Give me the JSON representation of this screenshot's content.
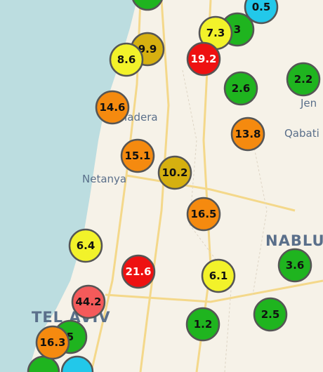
{
  "markers": [
    {
      "label": "0.5",
      "color": "#22c8ea"
    },
    {
      "label": "3",
      "color": "#1fb41f"
    },
    {
      "label": "7.3",
      "color": "#f2f22a"
    },
    {
      "label": "9.9",
      "color": "#d6b010"
    },
    {
      "label": "8.6",
      "color": "#f2f22a"
    },
    {
      "label": "19.2",
      "color": "#ee1111"
    },
    {
      "label": "2.6",
      "color": "#1fb41f"
    },
    {
      "label": "2.2",
      "color": "#1fb41f"
    },
    {
      "label": "14.6",
      "color": "#f58a0f"
    },
    {
      "label": "13.8",
      "color": "#f58a0f"
    },
    {
      "label": "15.1",
      "color": "#f58a0f"
    },
    {
      "label": "10.2",
      "color": "#d6b010"
    },
    {
      "label": "16.5",
      "color": "#f58a0f"
    },
    {
      "label": "6.4",
      "color": "#f2f22a"
    },
    {
      "label": "21.6",
      "color": "#ee1111"
    },
    {
      "label": "6.1",
      "color": "#f2f22a"
    },
    {
      "label": "3.6",
      "color": "#1fb41f"
    },
    {
      "label": "44.2",
      "color": "#f45a5a"
    },
    {
      "label": "2.5",
      "color": "#1fb41f"
    },
    {
      "label": "1.2",
      "color": "#1fb41f"
    },
    {
      "label": "5",
      "color": "#1fb41f"
    },
    {
      "label": "16.3",
      "color": "#f58a0f"
    }
  ],
  "places": [
    "Hadera",
    "Netanya",
    "Jen",
    "Qabati",
    "NABLU",
    "TEL AVIV"
  ]
}
